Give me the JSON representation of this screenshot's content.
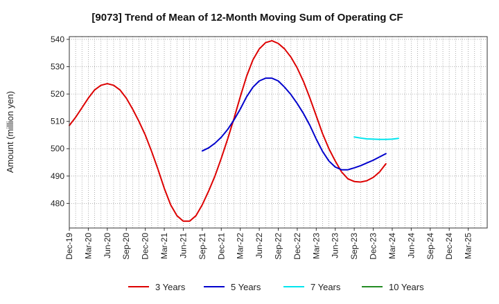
{
  "chart_data": {
    "type": "line",
    "title": "[9073]  Trend of Mean of 12-Month Moving Sum of Operating CF",
    "xlabel": "",
    "ylabel": "Amount (million yen)",
    "ylim": [
      471,
      541
    ],
    "yticks": [
      480,
      490,
      500,
      510,
      520,
      530,
      540
    ],
    "xlim": [
      0,
      66
    ],
    "x_tick_labels": [
      "Dec-19",
      "Mar-20",
      "Jun-20",
      "Sep-20",
      "Dec-20",
      "Mar-21",
      "Jun-21",
      "Sep-21",
      "Dec-21",
      "Mar-22",
      "Jun-22",
      "Sep-22",
      "Dec-22",
      "Mar-23",
      "Jun-23",
      "Sep-23",
      "Dec-23",
      "Mar-24",
      "Jun-24",
      "Sep-24",
      "Dec-24",
      "Mar-25"
    ],
    "grid": true,
    "legend_position": "bottom",
    "series": [
      {
        "name": "3 Years",
        "color": "#dd0000",
        "start_index": 0,
        "values": [
          508.5,
          511.5,
          515,
          518.5,
          521.5,
          523.2,
          523.8,
          523.2,
          521.5,
          518.5,
          514.5,
          510,
          505,
          499,
          492.5,
          485.5,
          479.5,
          475.5,
          473.5,
          473.5,
          475.5,
          479.5,
          484.5,
          490,
          496.5,
          503.5,
          511,
          519,
          526.5,
          532.5,
          536.5,
          538.8,
          539.5,
          538.5,
          536.5,
          533.5,
          529.5,
          524.5,
          518.5,
          512,
          505.5,
          500,
          495.5,
          491.5,
          489,
          488,
          487.8,
          488.3,
          489.5,
          491.5,
          494.5
        ]
      },
      {
        "name": "5 Years",
        "color": "#0000cc",
        "start_index": 21,
        "values": [
          499.2,
          500.3,
          502,
          504.2,
          507,
          510.5,
          514.5,
          519,
          522.5,
          524.8,
          525.8,
          525.8,
          524.8,
          522.5,
          519.8,
          516.5,
          512.8,
          508.5,
          503.5,
          499,
          495.5,
          493.3,
          492.3,
          492.3,
          493,
          493.8,
          494.8,
          495.8,
          497,
          498.2
        ]
      },
      {
        "name": "7 Years",
        "color": "#00e5ee",
        "start_index": 45,
        "values": [
          504.3,
          503.9,
          503.6,
          503.5,
          503.4,
          503.4,
          503.5,
          503.8
        ]
      },
      {
        "name": "10 Years",
        "color": "#228b22",
        "start_index": 0,
        "values": []
      }
    ]
  }
}
